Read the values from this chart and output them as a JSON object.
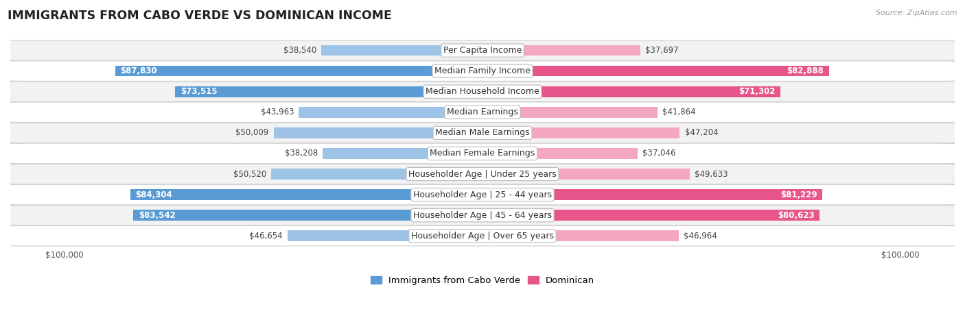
{
  "title": "IMMIGRANTS FROM CABO VERDE VS DOMINICAN INCOME",
  "source": "Source: ZipAtlas.com",
  "categories": [
    "Per Capita Income",
    "Median Family Income",
    "Median Household Income",
    "Median Earnings",
    "Median Male Earnings",
    "Median Female Earnings",
    "Householder Age | Under 25 years",
    "Householder Age | 25 - 44 years",
    "Householder Age | 45 - 64 years",
    "Householder Age | Over 65 years"
  ],
  "cabo_verde": [
    38540,
    87830,
    73515,
    43963,
    50009,
    38208,
    50520,
    84304,
    83542,
    46654
  ],
  "dominican": [
    37697,
    82888,
    71302,
    41864,
    47204,
    37046,
    49633,
    81229,
    80623,
    46964
  ],
  "cabo_verde_color_full": "#5b9bd5",
  "cabo_verde_color_light": "#9dc3e6",
  "dominican_color_full": "#e8558a",
  "dominican_color_light": "#f4a7c3",
  "max_val": 100000,
  "background_row_odd": "#f2f2f2",
  "background_row_even": "#ffffff",
  "bar_height": 0.52,
  "label_fontsize": 9.0,
  "value_fontsize": 8.5,
  "title_fontsize": 12.5,
  "legend_fontsize": 9.5,
  "threshold": 65000
}
